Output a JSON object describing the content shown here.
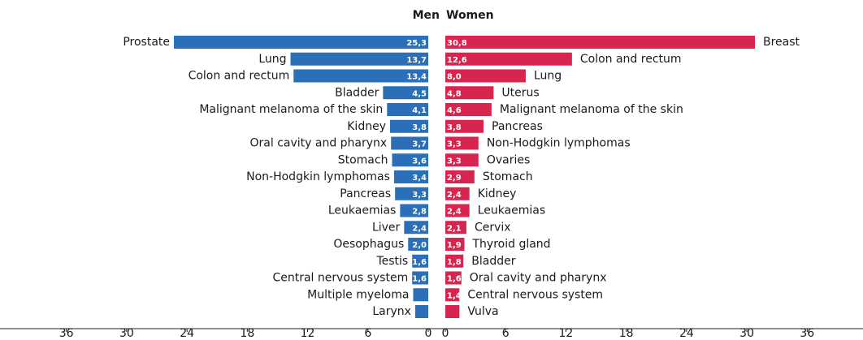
{
  "chart_data": [
    {
      "type": "bar",
      "orientation": "horizontal",
      "side": "left",
      "title": "Men",
      "color": "#2a6fb7",
      "categories": [
        "Prostate",
        "Lung",
        "Colon and rectum",
        "Bladder",
        "Malignant melanoma of the skin",
        "Kidney",
        "Oral cavity and pharynx",
        "Stomach",
        "Non-Hodgkin lymphomas",
        "Pancreas",
        "Leukaemias",
        "Liver",
        "Oesophagus",
        "Testis",
        "Central nervous system",
        "Multiple myeloma",
        "Larynx"
      ],
      "values": [
        25.3,
        13.7,
        13.4,
        4.5,
        4.1,
        3.8,
        3.7,
        3.6,
        3.4,
        3.3,
        2.8,
        2.4,
        2.0,
        1.6,
        1.6,
        1.5,
        1.3
      ],
      "value_labels": [
        "25,3",
        "13,7",
        "13,4",
        "4,5",
        "4,1",
        "3,8",
        "3,7",
        "3,6",
        "3,4",
        "3,3",
        "2,8",
        "2,4",
        "2,0",
        "1,6",
        "1,6",
        null,
        null
      ],
      "xlim": [
        0,
        36
      ],
      "xticks": [
        0,
        6,
        12,
        18,
        24,
        30,
        36
      ]
    },
    {
      "type": "bar",
      "orientation": "horizontal",
      "side": "right",
      "title": "Women",
      "color": "#d8254f",
      "categories": [
        "Breast",
        "Colon and rectum",
        "Lung",
        "Uterus",
        "Malignant melanoma of the skin",
        "Pancreas",
        "Non-Hodgkin lymphomas",
        "Ovaries",
        "Stomach",
        "Kidney",
        "Leukaemias",
        "Cervix",
        "Thyroid gland",
        "Bladder",
        "Oral cavity and pharynx",
        "Central nervous system",
        "Vulva"
      ],
      "values": [
        30.8,
        12.6,
        8.0,
        4.8,
        4.6,
        3.8,
        3.3,
        3.3,
        2.9,
        2.4,
        2.4,
        2.1,
        1.9,
        1.8,
        1.6,
        1.4,
        1.4
      ],
      "value_labels": [
        "30,8",
        "12,6",
        "8,0",
        "4,8",
        "4,6",
        "3,8",
        "3,3",
        "3,3",
        "2,9",
        "2,4",
        "2,4",
        "2,1",
        "1,9",
        "1,8",
        "1,6",
        "1,4",
        null
      ],
      "xlim": [
        0,
        36
      ],
      "xticks": [
        0,
        6,
        12,
        18,
        24,
        30,
        36
      ]
    }
  ]
}
